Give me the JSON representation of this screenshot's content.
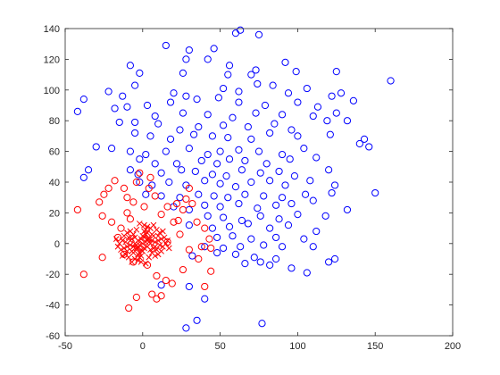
{
  "chart_data": {
    "type": "scatter",
    "title": "",
    "xlabel": "",
    "ylabel": "",
    "xlim": [
      -50,
      200
    ],
    "ylim": [
      -60,
      140
    ],
    "x_ticks": [
      "-50",
      "0",
      "50",
      "100",
      "150",
      "200"
    ],
    "y_ticks": [
      "-60",
      "-40",
      "-20",
      "0",
      "20",
      "40",
      "60",
      "80",
      "100",
      "120",
      "140"
    ],
    "grid": false,
    "legend": "none",
    "series": [
      {
        "marker": "circle",
        "color": "#0000FF",
        "points": [
          [
            63,
            139
          ],
          [
            75,
            136
          ],
          [
            60,
            137
          ],
          [
            15,
            129
          ],
          [
            30,
            126
          ],
          [
            46,
            127
          ],
          [
            42,
            120
          ],
          [
            28,
            120
          ],
          [
            56,
            116
          ],
          [
            92,
            118
          ],
          [
            -8,
            116
          ],
          [
            -2,
            111
          ],
          [
            26,
            111
          ],
          [
            55,
            110
          ],
          [
            70,
            110
          ],
          [
            73,
            113
          ],
          [
            125,
            112
          ],
          [
            99,
            112
          ],
          [
            160,
            106
          ],
          [
            -22,
            99
          ],
          [
            -13,
            96
          ],
          [
            -5,
            103
          ],
          [
            20,
            98
          ],
          [
            28,
            96
          ],
          [
            52,
            101
          ],
          [
            62,
            99
          ],
          [
            74,
            104
          ],
          [
            84,
            103
          ],
          [
            94,
            98
          ],
          [
            106,
            101
          ],
          [
            122,
            96
          ],
          [
            128,
            98
          ],
          [
            136,
            93
          ],
          [
            -38,
            94
          ],
          [
            -42,
            86
          ],
          [
            -18,
            88
          ],
          [
            -10,
            89
          ],
          [
            3,
            90
          ],
          [
            18,
            92
          ],
          [
            35,
            94
          ],
          [
            49,
            95
          ],
          [
            62,
            92
          ],
          [
            79,
            90
          ],
          [
            100,
            92
          ],
          [
            113,
            89
          ],
          [
            125,
            85
          ],
          [
            8,
            83
          ],
          [
            26,
            85
          ],
          [
            42,
            84
          ],
          [
            58,
            82
          ],
          [
            73,
            85
          ],
          [
            90,
            84
          ],
          [
            110,
            83
          ],
          [
            -15,
            79
          ],
          [
            -5,
            79
          ],
          [
            10,
            78
          ],
          [
            24,
            74
          ],
          [
            36,
            76
          ],
          [
            52,
            77
          ],
          [
            68,
            76
          ],
          [
            85,
            78
          ],
          [
            96,
            74
          ],
          [
            119,
            80
          ],
          [
            132,
            80
          ],
          [
            -5,
            72
          ],
          [
            5,
            70
          ],
          [
            18,
            68
          ],
          [
            33,
            71
          ],
          [
            45,
            70
          ],
          [
            55,
            69
          ],
          [
            70,
            68
          ],
          [
            82,
            72
          ],
          [
            100,
            70
          ],
          [
            121,
            71
          ],
          [
            -30,
            63
          ],
          [
            -20,
            62
          ],
          [
            -8,
            60
          ],
          [
            2,
            58
          ],
          [
            15,
            60
          ],
          [
            30,
            62
          ],
          [
            42,
            58
          ],
          [
            50,
            60
          ],
          [
            62,
            61
          ],
          [
            75,
            60
          ],
          [
            90,
            58
          ],
          [
            104,
            62
          ],
          [
            140,
            65
          ],
          [
            143,
            68
          ],
          [
            146,
            63
          ],
          [
            -2,
            55
          ],
          [
            8,
            52
          ],
          [
            22,
            52
          ],
          [
            38,
            54
          ],
          [
            48,
            52
          ],
          [
            56,
            55
          ],
          [
            66,
            54
          ],
          [
            80,
            52
          ],
          [
            95,
            55
          ],
          [
            112,
            56
          ],
          [
            -8,
            48
          ],
          [
            -3,
            45
          ],
          [
            12,
            46
          ],
          [
            25,
            48
          ],
          [
            34,
            47
          ],
          [
            45,
            45
          ],
          [
            54,
            44
          ],
          [
            64,
            48
          ],
          [
            76,
            46
          ],
          [
            88,
            47
          ],
          [
            98,
            44
          ],
          [
            120,
            48
          ],
          [
            -35,
            48
          ],
          [
            -38,
            43
          ],
          [
            -2,
            40
          ],
          [
            6,
            38
          ],
          [
            17,
            40
          ],
          [
            28,
            38
          ],
          [
            40,
            41
          ],
          [
            50,
            39
          ],
          [
            60,
            37
          ],
          [
            70,
            40
          ],
          [
            82,
            41
          ],
          [
            92,
            38
          ],
          [
            108,
            41
          ],
          [
            124,
            38
          ],
          [
            2,
            32
          ],
          [
            12,
            31
          ],
          [
            24,
            30
          ],
          [
            36,
            32
          ],
          [
            46,
            31
          ],
          [
            55,
            30
          ],
          [
            66,
            32
          ],
          [
            78,
            31
          ],
          [
            90,
            30
          ],
          [
            105,
            32
          ],
          [
            122,
            33
          ],
          [
            150,
            33
          ],
          [
            20,
            24
          ],
          [
            30,
            22
          ],
          [
            40,
            25
          ],
          [
            50,
            24
          ],
          [
            62,
            26
          ],
          [
            74,
            23
          ],
          [
            86,
            25
          ],
          [
            96,
            26
          ],
          [
            110,
            28
          ],
          [
            42,
            18
          ],
          [
            52,
            17
          ],
          [
            64,
            15
          ],
          [
            76,
            18
          ],
          [
            88,
            16
          ],
          [
            100,
            19
          ],
          [
            118,
            18
          ],
          [
            132,
            22
          ],
          [
            30,
            12
          ],
          [
            45,
            10
          ],
          [
            56,
            11
          ],
          [
            68,
            13
          ],
          [
            82,
            10
          ],
          [
            94,
            12
          ],
          [
            112,
            8
          ],
          [
            48,
            4
          ],
          [
            58,
            5
          ],
          [
            70,
            3
          ],
          [
            86,
            4
          ],
          [
            104,
            3
          ],
          [
            40,
            -2
          ],
          [
            52,
            -3
          ],
          [
            63,
            -2
          ],
          [
            78,
            -1
          ],
          [
            90,
            -2
          ],
          [
            110,
            -2
          ],
          [
            32,
            -8
          ],
          [
            48,
            -6
          ],
          [
            60,
            -7
          ],
          [
            72,
            -9
          ],
          [
            86,
            -10
          ],
          [
            66,
            -13
          ],
          [
            76,
            -12
          ],
          [
            82,
            -14
          ],
          [
            96,
            -16
          ],
          [
            106,
            -19
          ],
          [
            120,
            -12
          ],
          [
            124,
            -10
          ],
          [
            12,
            -27
          ],
          [
            30,
            -28
          ],
          [
            40,
            -36
          ],
          [
            35,
            -50
          ],
          [
            28,
            -55
          ],
          [
            77,
            -52
          ]
        ]
      },
      {
        "marker": "circle",
        "color": "#FF0000",
        "points": [
          [
            -42,
            22
          ],
          [
            -38,
            -20
          ],
          [
            -28,
            27
          ],
          [
            -26,
            18
          ],
          [
            -25,
            32
          ],
          [
            -22,
            36
          ],
          [
            -18,
            41
          ],
          [
            -12,
            36
          ],
          [
            -10,
            30
          ],
          [
            -4,
            40
          ],
          [
            5,
            43
          ],
          [
            -6,
            27
          ],
          [
            1,
            24
          ],
          [
            8,
            31
          ],
          [
            16,
            24
          ],
          [
            22,
            26
          ],
          [
            26,
            22
          ],
          [
            28,
            29
          ],
          [
            32,
            26
          ],
          [
            35,
            14
          ],
          [
            40,
            10
          ],
          [
            43,
            3
          ],
          [
            38,
            -2
          ],
          [
            44,
            -3
          ],
          [
            -26,
            -9
          ],
          [
            -12,
            -7
          ],
          [
            -6,
            -12
          ],
          [
            3,
            -14
          ],
          [
            9,
            -21
          ],
          [
            15,
            -24
          ],
          [
            19,
            -26
          ],
          [
            26,
            -17
          ],
          [
            6,
            -33
          ],
          [
            9,
            -36
          ],
          [
            12,
            -34
          ],
          [
            -9,
            -42
          ],
          [
            -4,
            -35
          ],
          [
            -8,
            16
          ],
          [
            -14,
            10
          ],
          [
            -16,
            4
          ],
          [
            24,
            6
          ],
          [
            30,
            -4
          ],
          [
            20,
            14
          ],
          [
            12,
            19
          ],
          [
            16,
            1
          ],
          [
            -20,
            14
          ],
          [
            36,
            -10
          ],
          [
            44,
            -18
          ],
          [
            40,
            -28
          ],
          [
            -2,
            46
          ],
          [
            30,
            36
          ],
          [
            4,
            36
          ],
          [
            -10,
            20
          ],
          [
            23,
            15
          ]
        ]
      },
      {
        "marker": "x",
        "color": "#FF0000",
        "points": [
          [
            0,
            0
          ],
          [
            2,
            1
          ],
          [
            -2,
            -1
          ],
          [
            3,
            -2
          ],
          [
            -3,
            2
          ],
          [
            1,
            4
          ],
          [
            -1,
            -4
          ],
          [
            4,
            3
          ],
          [
            -4,
            -3
          ],
          [
            5,
            0
          ],
          [
            -5,
            0
          ],
          [
            0,
            5
          ],
          [
            0,
            -5
          ],
          [
            6,
            2
          ],
          [
            -6,
            -2
          ],
          [
            2,
            6
          ],
          [
            -2,
            -6
          ],
          [
            7,
            -3
          ],
          [
            -7,
            3
          ],
          [
            3,
            7
          ],
          [
            -3,
            -7
          ],
          [
            8,
            1
          ],
          [
            -8,
            -1
          ],
          [
            1,
            8
          ],
          [
            -1,
            -8
          ],
          [
            9,
            -4
          ],
          [
            -9,
            4
          ],
          [
            4,
            -9
          ],
          [
            -4,
            9
          ],
          [
            10,
            2
          ],
          [
            -10,
            -2
          ],
          [
            6,
            6
          ],
          [
            -6,
            -6
          ],
          [
            6,
            -6
          ],
          [
            -6,
            6
          ],
          [
            11,
            -1
          ],
          [
            -11,
            1
          ],
          [
            12,
            3
          ],
          [
            -12,
            -3
          ],
          [
            8,
            -8
          ],
          [
            -8,
            8
          ],
          [
            13,
            -2
          ],
          [
            -13,
            2
          ],
          [
            5,
            10
          ],
          [
            -5,
            -10
          ],
          [
            14,
            4
          ],
          [
            -14,
            -4
          ],
          [
            9,
            9
          ],
          [
            -9,
            -9
          ],
          [
            10,
            -7
          ],
          [
            -10,
            7
          ],
          [
            15,
            0
          ],
          [
            -15,
            0
          ],
          [
            1,
            12
          ],
          [
            -1,
            -12
          ],
          [
            11,
            7
          ],
          [
            -11,
            -7
          ],
          [
            3,
            11
          ],
          [
            -3,
            -11
          ],
          [
            12,
            -5
          ],
          [
            -12,
            5
          ],
          [
            7,
            12
          ],
          [
            -7,
            -12
          ],
          [
            16,
            2
          ],
          [
            -16,
            -2
          ],
          [
            2,
            -13
          ],
          [
            -2,
            13
          ],
          [
            13,
            8
          ],
          [
            -13,
            -8
          ],
          [
            17,
            -3
          ],
          [
            -17,
            3
          ],
          [
            4,
            1
          ],
          [
            -4,
            -1
          ],
          [
            1,
            -3
          ],
          [
            -1,
            3
          ],
          [
            3,
            3
          ],
          [
            -3,
            -3
          ],
          [
            7,
            5
          ],
          [
            -7,
            -5
          ],
          [
            5,
            -4
          ],
          [
            -5,
            4
          ],
          [
            10,
            5
          ],
          [
            -10,
            -5
          ],
          [
            8,
            -2
          ],
          [
            -8,
            2
          ],
          [
            2,
            9
          ],
          [
            -2,
            -9
          ]
        ]
      }
    ]
  }
}
